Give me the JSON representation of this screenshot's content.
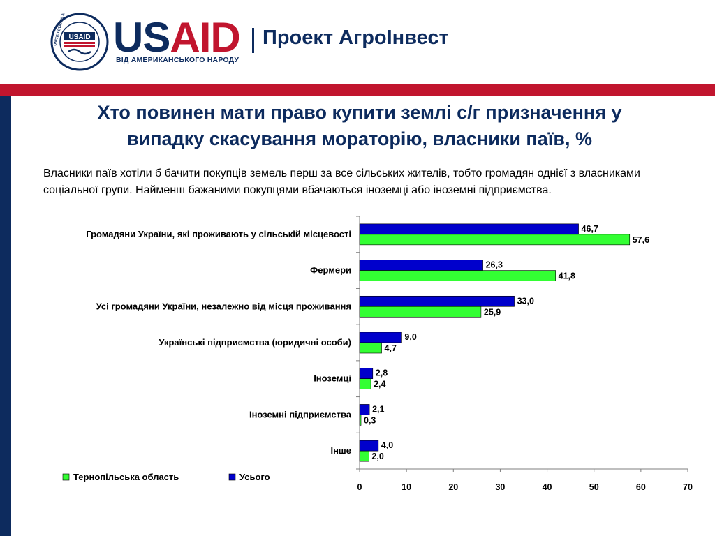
{
  "header": {
    "logo_main_us": "US",
    "logo_main_aid": "AID",
    "logo_sub": "ВІД АМЕРИКАНСЬКОГО НАРОДУ",
    "project": "Проект АгроІнвест",
    "seal_text": "UNITED STATES AGENCY INTERNATIONAL DEVELOPMENT",
    "seal_center": "USAID"
  },
  "slide": {
    "title_line1": "Хто повинен мати право купити землі с/г призначення у",
    "title_line2": "випадку скасування мораторію,  власники паїв, %",
    "description": "Власники паїв хотіли б бачити покупців земель перш за все сільських жителів, тобто громадян однієї з власниками соціальної групи. Найменш бажаними покупцями вбачаються іноземці або іноземні підприємства."
  },
  "colors": {
    "navy": "#0d2b5e",
    "red": "#c1152e",
    "series_total": "#0000cc",
    "series_ternopil": "#33ff33"
  },
  "chart_data": {
    "type": "bar",
    "orientation": "horizontal",
    "categories": [
      "Громадяни України, які проживають у сільській місцевості",
      "Фермери",
      "Усі громадяни України, незалежно від місця проживання",
      "Українські підприємства (юридичні особи)",
      "Іноземці",
      "Іноземні підприємства",
      "Інше"
    ],
    "series": [
      {
        "name": "Усього",
        "color": "#0000cc",
        "values": [
          46.7,
          26.3,
          33.0,
          9.0,
          2.8,
          2.1,
          4.0
        ],
        "labels": [
          "46,7",
          "26,3",
          "33,0",
          "9,0",
          "2,8",
          "2,1",
          "4,0"
        ]
      },
      {
        "name": "Тернопільська область",
        "color": "#33ff33",
        "values": [
          57.6,
          41.8,
          25.9,
          4.7,
          2.4,
          0.3,
          2.0
        ],
        "labels": [
          "57,6",
          "41,8",
          "25,9",
          "4,7",
          "2,4",
          "0,3",
          "2,0"
        ]
      }
    ],
    "xlim": [
      0,
      70
    ],
    "xticks": [
      "0",
      "10",
      "20",
      "30",
      "40",
      "50",
      "60",
      "70"
    ],
    "legend": [
      {
        "name": "Тернопільська область",
        "color": "#33ff33"
      },
      {
        "name": "Усього",
        "color": "#0000cc"
      }
    ],
    "legend_position": "bottom-left",
    "grid": false
  }
}
